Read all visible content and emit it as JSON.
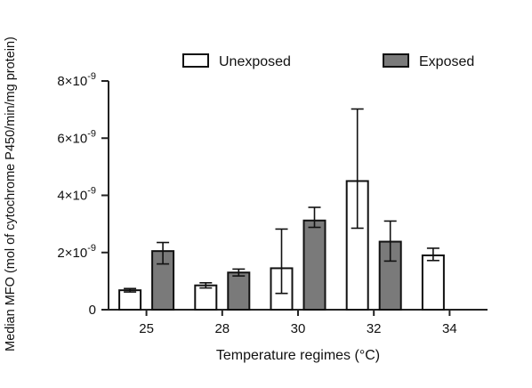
{
  "chart_data": {
    "type": "bar",
    "xlabel": "Temperature regimes (°C)",
    "ylabel": "Median MFO (mol of cytochrome P450/min/mg protein)",
    "categories": [
      "25",
      "28",
      "30",
      "32",
      "34"
    ],
    "ylim": [
      0,
      8e-09
    ],
    "yticks": [
      0,
      2e-09,
      4e-09,
      6e-09,
      8e-09
    ],
    "ytick_labels": [
      {
        "mant": "0",
        "exp": ""
      },
      {
        "mant": "2×10",
        "exp": "-9"
      },
      {
        "mant": "4×10",
        "exp": "-9"
      },
      {
        "mant": "6×10",
        "exp": "-9"
      },
      {
        "mant": "8×10",
        "exp": "-9"
      }
    ],
    "legend_position": "top",
    "grid": false,
    "series": [
      {
        "name": "Unexposed",
        "color": "#ffffff",
        "values": [
          6.8e-10,
          8.5e-10,
          1.45e-09,
          4.5e-09,
          1.9e-09
        ],
        "err_low": [
          6.2e-10,
          7.6e-10,
          5.7e-10,
          2.85e-09,
          1.72e-09
        ],
        "err_high": [
          7.4e-10,
          9.4e-10,
          2.82e-09,
          7.02e-09,
          2.15e-09
        ]
      },
      {
        "name": "Exposed",
        "color": "#7a7a7a",
        "values": [
          2.05e-09,
          1.3e-09,
          3.12e-09,
          2.38e-09,
          null
        ],
        "err_low": [
          1.6e-09,
          1.18e-09,
          2.88e-09,
          1.7e-09,
          null
        ],
        "err_high": [
          2.35e-09,
          1.42e-09,
          3.58e-09,
          3.1e-09,
          null
        ]
      }
    ]
  }
}
